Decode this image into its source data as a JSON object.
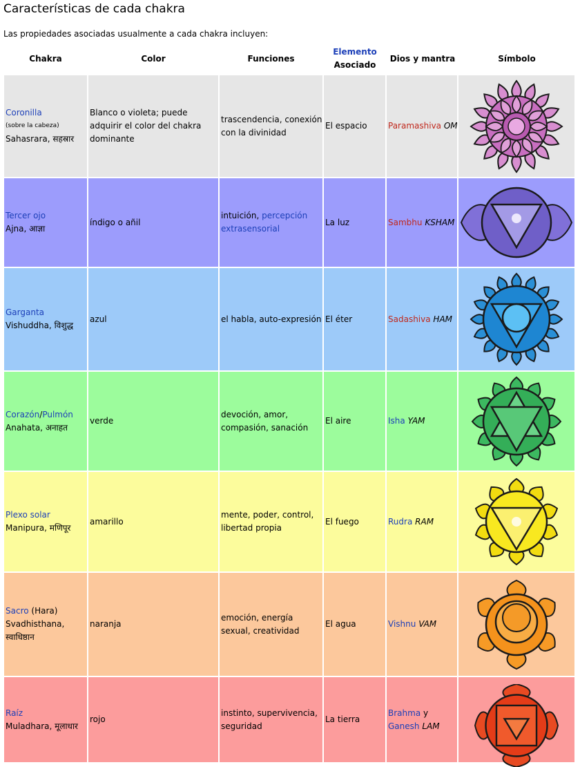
{
  "title": "Características de cada chakra",
  "intro": "Las propiedades asociadas usualmente a cada chakra incluyen:",
  "headers": {
    "chakra": "Chakra",
    "color": "Color",
    "funciones": "Funciones",
    "elemento_link": "Elemento",
    "elemento_rest": "Asociado",
    "dios": "Dios y mantra",
    "simbolo": "Símbolo"
  },
  "rows": [
    {
      "bg": "#e6e6e6",
      "chakra_link": "Coronilla",
      "chakra_note": "(sobre la cabeza)",
      "chakra_name": "Sahasrara, सहस्रार",
      "color": "Blanco o violeta; puede adquirir el color del chakra dominante",
      "funciones": "trascendencia, conexión con la divinidad",
      "elemento": "El espacio",
      "dios": "Paramashiva",
      "mantra": "OM",
      "symbol_icon": "lotus-thousand-petal-icon"
    },
    {
      "bg": "#9c9cfc",
      "chakra_link": "Tercer ojo",
      "chakra_name": "Ajna, आज्ञा",
      "color": "índigo o añil",
      "funciones_plain": "intuición, ",
      "funciones_link": "percepción extrasensorial",
      "elemento": "La luz",
      "dios": "Sambhu",
      "mantra": "KSHAM",
      "symbol_icon": "two-petal-lotus-icon"
    },
    {
      "bg": "#9dcaf9",
      "chakra_link": "Garganta",
      "chakra_name": "Vishuddha, विशुद्ध",
      "color": "azul",
      "funciones": "el habla, auto-expresión",
      "elemento": "El éter",
      "dios": "Sadashiva",
      "mantra": "HAM",
      "symbol_icon": "sixteen-petal-lotus-icon"
    },
    {
      "bg": "#9cfc9c",
      "chakra_link": "Corazón",
      "chakra_sep": "/",
      "chakra_link2": "Pulmón",
      "chakra_name": "Anahata, अनाहत",
      "color": "verde",
      "funciones": "devoción, amor, compasión, sanación",
      "elemento": "El aire",
      "dios": "Isha",
      "mantra": "YAM",
      "symbol_icon": "hexagram-lotus-icon"
    },
    {
      "bg": "#fcfc9c",
      "chakra_link": "Plexo solar",
      "chakra_name": "Manipura, मणिपूर",
      "color": "amarillo",
      "funciones": "mente, poder, control, libertad propia",
      "elemento": "El fuego",
      "dios": "Rudra",
      "mantra": "RAM",
      "symbol_icon": "triangle-lotus-icon"
    },
    {
      "bg": "#fcc89c",
      "chakra_link": "Sacro",
      "chakra_extra": " (Hara)",
      "chakra_name": "Svadhisthana, स्वाधिष्ठान",
      "color": "naranja",
      "funciones": "emoción, energía sexual, creatividad",
      "elemento": "El agua",
      "dios": "Vishnu",
      "mantra": "VAM",
      "symbol_icon": "crescent-lotus-icon"
    },
    {
      "bg": "#fc9c9c",
      "chakra_link": "Raíz",
      "chakra_name": "Muladhara, मूलाधार",
      "color": "rojo",
      "funciones": "instinto, supervivencia, seguridad",
      "elemento": "La tierra",
      "dios": "Brahma",
      "dios_join": " y",
      "dios2": "Ganesh",
      "mantra": "LAM",
      "symbol_icon": "square-lotus-icon"
    }
  ]
}
